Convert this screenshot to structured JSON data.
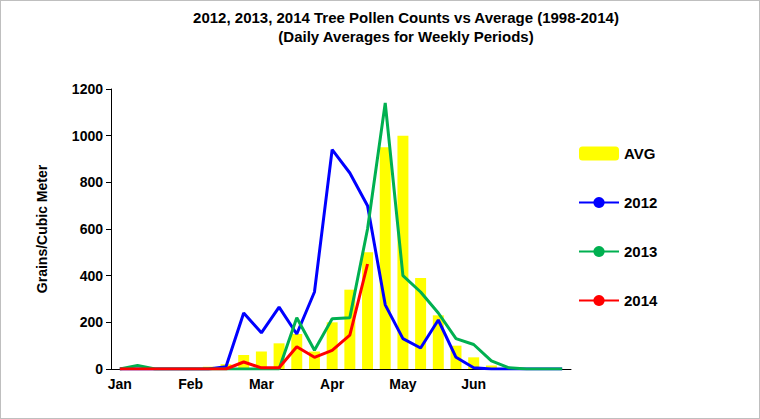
{
  "chart_data": {
    "type": "line",
    "title": "2012, 2013, 2014 Tree Pollen Counts vs Average (1998-2014)",
    "subtitle": "(Daily Averages for Weekly Periods)",
    "y_label": "Grains/Cubic Meter",
    "categories": [
      "Jan",
      null,
      null,
      null,
      "Feb",
      null,
      null,
      null,
      "Mar",
      null,
      null,
      null,
      "Apr",
      null,
      null,
      null,
      "May",
      null,
      null,
      null,
      "Jun",
      null,
      null,
      null,
      null,
      null
    ],
    "series": [
      {
        "name": "AVG",
        "type": "bar",
        "color": "#ffff00",
        "values": [
          0,
          0,
          0,
          0,
          5,
          10,
          20,
          60,
          75,
          110,
          150,
          75,
          200,
          340,
          500,
          950,
          1000,
          390,
          230,
          100,
          50,
          15,
          5,
          0,
          0,
          0
        ]
      },
      {
        "name": "2012",
        "type": "line",
        "color": "#0000ff",
        "values": [
          0,
          0,
          0,
          0,
          0,
          0,
          10,
          240,
          155,
          265,
          150,
          330,
          940,
          840,
          700,
          275,
          130,
          90,
          210,
          50,
          5,
          0,
          0,
          0,
          0,
          0
        ]
      },
      {
        "name": "2013",
        "type": "line",
        "color": "#00b050",
        "values": [
          0,
          15,
          0,
          0,
          0,
          0,
          0,
          0,
          0,
          0,
          220,
          80,
          215,
          220,
          600,
          1140,
          400,
          330,
          240,
          130,
          105,
          35,
          5,
          0,
          0,
          0
        ]
      },
      {
        "name": "2014",
        "type": "line",
        "color": "#ff0000",
        "values": [
          0,
          0,
          0,
          0,
          0,
          0,
          0,
          30,
          5,
          5,
          95,
          50,
          80,
          145,
          450,
          null,
          null,
          null,
          null,
          null,
          null,
          null,
          null,
          null,
          null,
          null
        ]
      }
    ],
    "ylim": [
      0,
      1200
    ],
    "yticks": [
      0,
      200,
      400,
      600,
      800,
      1000,
      1200
    ],
    "grid": false,
    "legend": "right"
  }
}
